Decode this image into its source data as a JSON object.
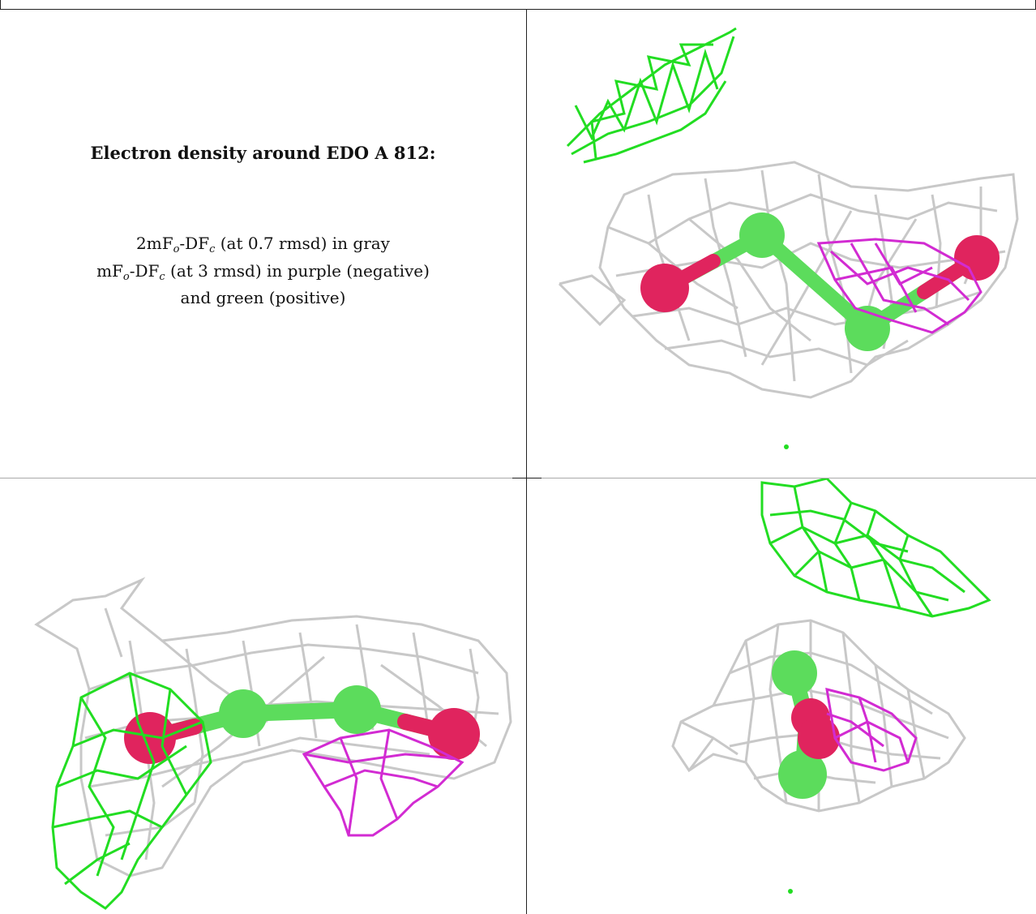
{
  "caption": {
    "title": "Electron density around EDO A 812:",
    "line1": {
      "pre": "2mF",
      "sub1": "o",
      "mid": "-DF",
      "sub2": "c",
      "post": " (at 0.7 rmsd) in gray"
    },
    "line2": {
      "pre": "mF",
      "sub1": "o",
      "mid": "-DF",
      "sub2": "c",
      "post": " (at 3 rmsd) in purple (negative)"
    },
    "line3": "and green (positive)"
  },
  "colors": {
    "gray_mesh": "#c8c8c8",
    "purple_mesh": "#d22bd2",
    "green_mesh": "#22dd22",
    "oxygen": "#e0245e",
    "carbon": "#5cdc5c"
  },
  "panels": [
    {
      "view": "top-right"
    },
    {
      "view": "bottom-left"
    },
    {
      "view": "bottom-right"
    }
  ]
}
